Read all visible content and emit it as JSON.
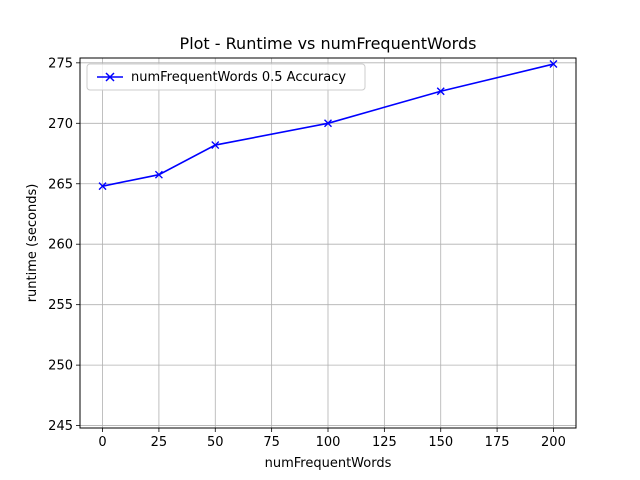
{
  "chart_data": {
    "type": "line",
    "title": "Plot - Runtime vs numFrequentWords",
    "xlabel": "numFrequentWords",
    "ylabel": "runtime (seconds)",
    "xlim": [
      -10,
      210
    ],
    "ylim": [
      244.8,
      275.4
    ],
    "xticks": [
      0,
      25,
      50,
      75,
      100,
      125,
      150,
      175,
      200
    ],
    "yticks": [
      245,
      250,
      255,
      260,
      265,
      270,
      275
    ],
    "grid": true,
    "legend_position": "top-left",
    "series": [
      {
        "name": "numFrequentWords 0.5 Accuracy",
        "color": "#0000ff",
        "marker": "x",
        "x": [
          0,
          25,
          50,
          100,
          150,
          200
        ],
        "y": [
          264.8,
          265.75,
          268.2,
          270.0,
          272.65,
          274.9
        ]
      }
    ]
  }
}
